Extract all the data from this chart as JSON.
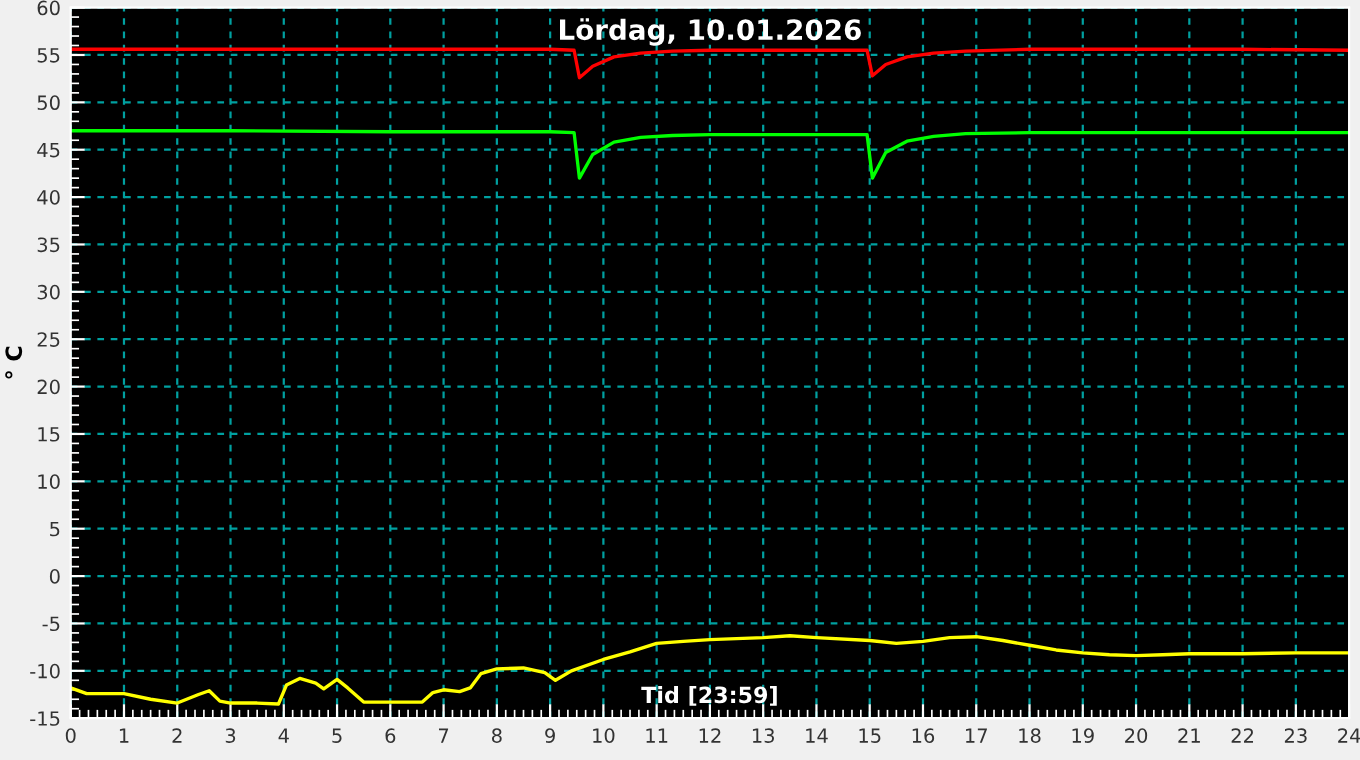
{
  "chart_data": {
    "type": "line",
    "title": "Lördag, 10.01.2026",
    "xlabel": "Tid [23:59]",
    "ylabel": "° C",
    "xlim": [
      0,
      24
    ],
    "xticks": [
      0,
      1,
      2,
      3,
      4,
      5,
      6,
      7,
      8,
      9,
      10,
      11,
      12,
      13,
      14,
      15,
      16,
      17,
      18,
      19,
      20,
      21,
      22,
      23,
      24
    ],
    "ylim": [
      -15,
      60
    ],
    "yticks": [
      -15,
      -10,
      -5,
      0,
      5,
      10,
      15,
      20,
      25,
      30,
      35,
      40,
      45,
      50,
      55,
      60
    ],
    "grid": true,
    "legend": false,
    "marker": "none",
    "line_style": "solid",
    "series": [
      {
        "color": "#ff0000",
        "x": [
          0,
          3,
          6,
          9,
          9.45,
          9.55,
          9.8,
          10.2,
          10.7,
          11.3,
          12,
          13,
          14,
          14.95,
          15.05,
          15.3,
          15.7,
          16.2,
          16.8,
          18,
          20,
          22,
          24
        ],
        "values": [
          55.6,
          55.6,
          55.6,
          55.6,
          55.5,
          52.6,
          53.8,
          54.8,
          55.2,
          55.4,
          55.5,
          55.5,
          55.5,
          55.5,
          52.8,
          54,
          54.8,
          55.2,
          55.4,
          55.6,
          55.6,
          55.6,
          55.5
        ]
      },
      {
        "color": "#00ff00",
        "x": [
          0,
          3,
          6,
          9,
          9.45,
          9.55,
          9.8,
          10.2,
          10.7,
          11.3,
          12,
          13,
          14,
          14.95,
          15.05,
          15.3,
          15.7,
          16.2,
          16.8,
          18,
          20,
          22,
          24
        ],
        "values": [
          47,
          47,
          46.9,
          46.9,
          46.8,
          42,
          44.5,
          45.8,
          46.3,
          46.5,
          46.6,
          46.6,
          46.6,
          46.6,
          42,
          44.7,
          45.9,
          46.4,
          46.7,
          46.8,
          46.8,
          46.8,
          46.8
        ]
      },
      {
        "color": "#ffff00",
        "x": [
          0,
          0.3,
          1,
          1.5,
          2,
          2.4,
          2.6,
          2.8,
          3,
          3.5,
          3.9,
          4.05,
          4.3,
          4.6,
          4.75,
          5,
          5.2,
          5.5,
          6,
          6.6,
          6.8,
          7,
          7.3,
          7.5,
          7.7,
          8,
          8.5,
          8.9,
          9.1,
          9.4,
          10,
          10.5,
          11,
          11.5,
          12,
          13,
          13.5,
          14,
          15,
          15.5,
          16,
          16.5,
          17,
          17.5,
          18,
          18.5,
          19,
          19.5,
          20,
          20.5,
          21,
          22,
          23,
          24
        ],
        "values": [
          -11.8,
          -12.4,
          -12.4,
          -13,
          -13.4,
          -12.5,
          -12.1,
          -13.2,
          -13.4,
          -13.4,
          -13.5,
          -11.5,
          -10.8,
          -11.3,
          -11.9,
          -10.9,
          -11.8,
          -13.3,
          -13.3,
          -13.3,
          -12.3,
          -12,
          -12.2,
          -11.8,
          -10.3,
          -9.8,
          -9.7,
          -10.2,
          -11,
          -10,
          -8.8,
          -8,
          -7.1,
          -6.9,
          -6.7,
          -6.5,
          -6.3,
          -6.5,
          -6.8,
          -7.1,
          -6.9,
          -6.5,
          -6.4,
          -6.8,
          -7.3,
          -7.8,
          -8.1,
          -8.3,
          -8.4,
          -8.3,
          -8.2,
          -8.2,
          -8.1,
          -8.1
        ]
      }
    ]
  }
}
